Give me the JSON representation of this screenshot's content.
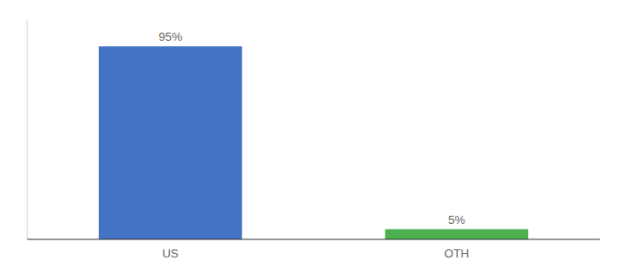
{
  "chart_data": {
    "type": "bar",
    "categories": [
      "US",
      "OTH"
    ],
    "values": [
      95,
      5
    ],
    "value_labels": [
      "95%",
      "5%"
    ],
    "colors": [
      "#4472c4",
      "#4caf50"
    ],
    "ylim": [
      0,
      108
    ],
    "data_labels": true,
    "tick_labels": "x",
    "grid": false
  }
}
